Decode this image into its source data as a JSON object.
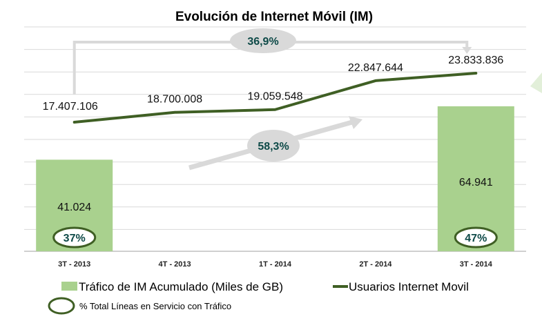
{
  "chart_data": {
    "type": "bar",
    "title": "Evolución de Internet Móvil (IM)",
    "categories": [
      "3T - 2013",
      "4T - 2013",
      "1T - 2014",
      "2T - 2014",
      "3T - 2014"
    ],
    "series": [
      {
        "name": "Tráfico de IM Acumulado (Miles de GB)",
        "type": "bar",
        "color": "#a9d18e",
        "values": [
          41024,
          null,
          null,
          null,
          64941
        ],
        "labels": [
          "41.024",
          "",
          "",
          "",
          "64.941"
        ]
      },
      {
        "name": "Usuarios Internet Movil",
        "type": "line",
        "color": "#3f5f24",
        "values": [
          17407106,
          18700008,
          19059548,
          22847644,
          23833836
        ],
        "labels": [
          "17.407.106",
          "18.700.008",
          "19.059.548",
          "22.847.644",
          "23.833.836"
        ]
      }
    ],
    "annotations": {
      "line_growth": "36,9%",
      "bar_growth": "58,3%",
      "pct_lines_with_traffic": [
        "37%",
        "",
        "",
        "",
        "47%"
      ]
    },
    "legend": [
      {
        "label": "Tráfico de IM Acumulado (Miles de GB)",
        "symbol": "square",
        "color": "#a9d18e"
      },
      {
        "label": "Usuarios Internet Movil",
        "symbol": "line",
        "color": "#3f5f24"
      },
      {
        "label": "% Total Líneas en Servicio con Tráfico",
        "symbol": "ellipse",
        "color": "#3f5f24"
      }
    ],
    "legend_position": "bottom",
    "grid": true,
    "xlabel": "",
    "ylabel": ""
  }
}
